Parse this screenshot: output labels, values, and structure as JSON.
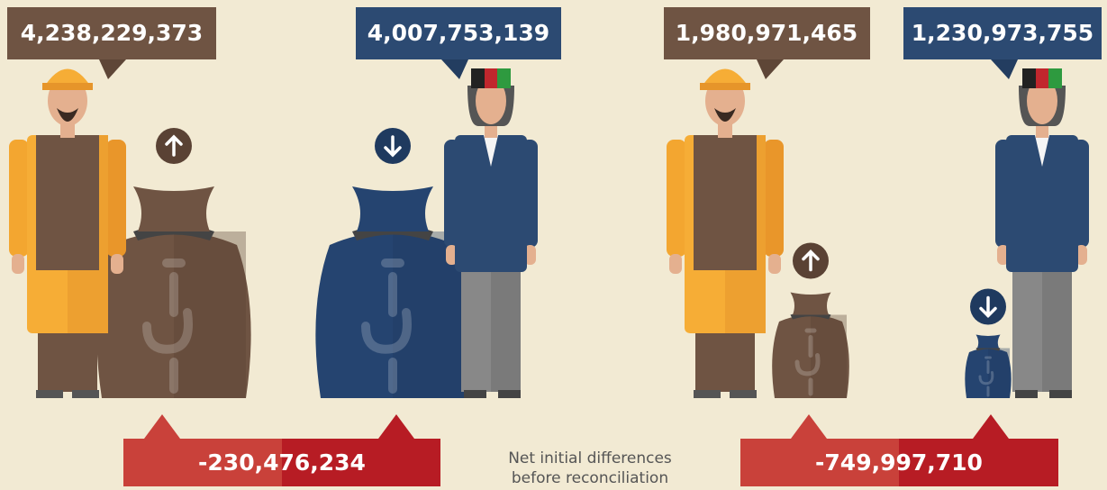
{
  "panels": [
    {
      "left_value": "4,238,229,373",
      "right_value": "4,007,753,139",
      "difference": "-230,476,234"
    },
    {
      "left_value": "1,980,971,465",
      "right_value": "1,230,973,755",
      "difference": "-749,997,710"
    }
  ],
  "note": [
    "Net initial differences",
    "before reconciliation"
  ]
}
